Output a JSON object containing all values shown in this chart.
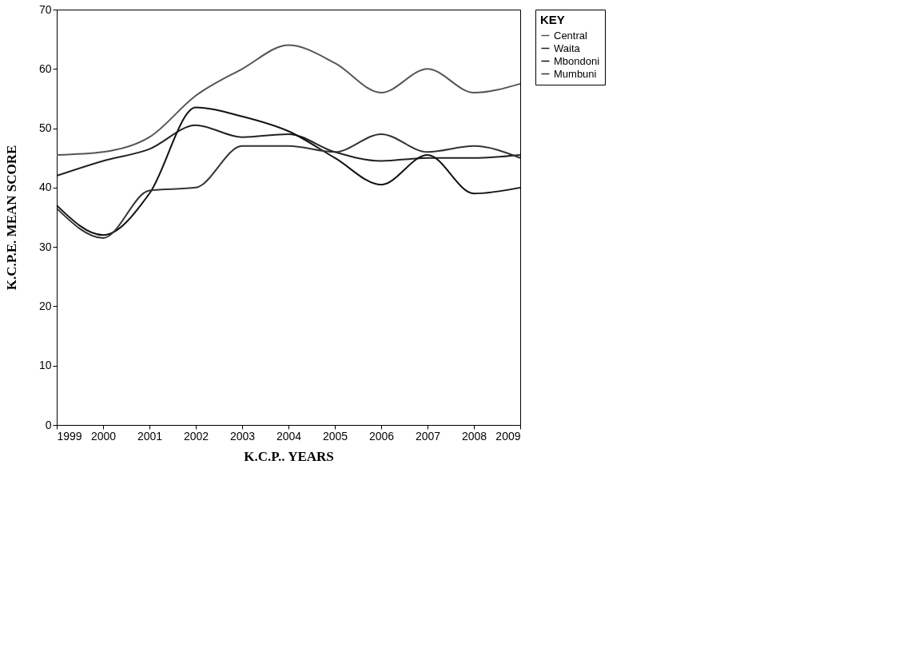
{
  "chart_data": {
    "type": "line",
    "xlabel": "K.C.P.. YEARS",
    "ylabel": "K.C.P.E. MEAN SCORE",
    "legend_title": "KEY",
    "x": [
      1999,
      2000,
      2001,
      2002,
      2003,
      2004,
      2005,
      2006,
      2007,
      2008,
      2009
    ],
    "series": [
      {
        "name": "Central",
        "color": "#555555",
        "values": [
          45.5,
          46,
          48.5,
          55.5,
          60,
          64,
          61,
          56,
          60,
          56,
          57.5
        ]
      },
      {
        "name": "Waita",
        "color": "#222222",
        "values": [
          42,
          44.5,
          46.5,
          50.5,
          48.5,
          49,
          46,
          44.5,
          45,
          45,
          45.5
        ]
      },
      {
        "name": "Mbondoni",
        "color": "#111111",
        "values": [
          37,
          32,
          39,
          53.5,
          52,
          49.5,
          45,
          40.5,
          45.5,
          39,
          40
        ]
      },
      {
        "name": "Mumbuni",
        "color": "#333333",
        "values": [
          36.5,
          31.5,
          39.5,
          40,
          47,
          47,
          46,
          49,
          46,
          47,
          45
        ]
      }
    ],
    "xlim": [
      1999,
      2009
    ],
    "xticks": [
      1999,
      2000,
      2001,
      2002,
      2003,
      2004,
      2005,
      2006,
      2007,
      2008,
      2009
    ],
    "ylim": [
      0,
      70
    ],
    "yticks": [
      0,
      10,
      20,
      30,
      40,
      50,
      60,
      70
    ],
    "grid": false,
    "legend": "right",
    "marker": "none",
    "line_style": "solid"
  }
}
